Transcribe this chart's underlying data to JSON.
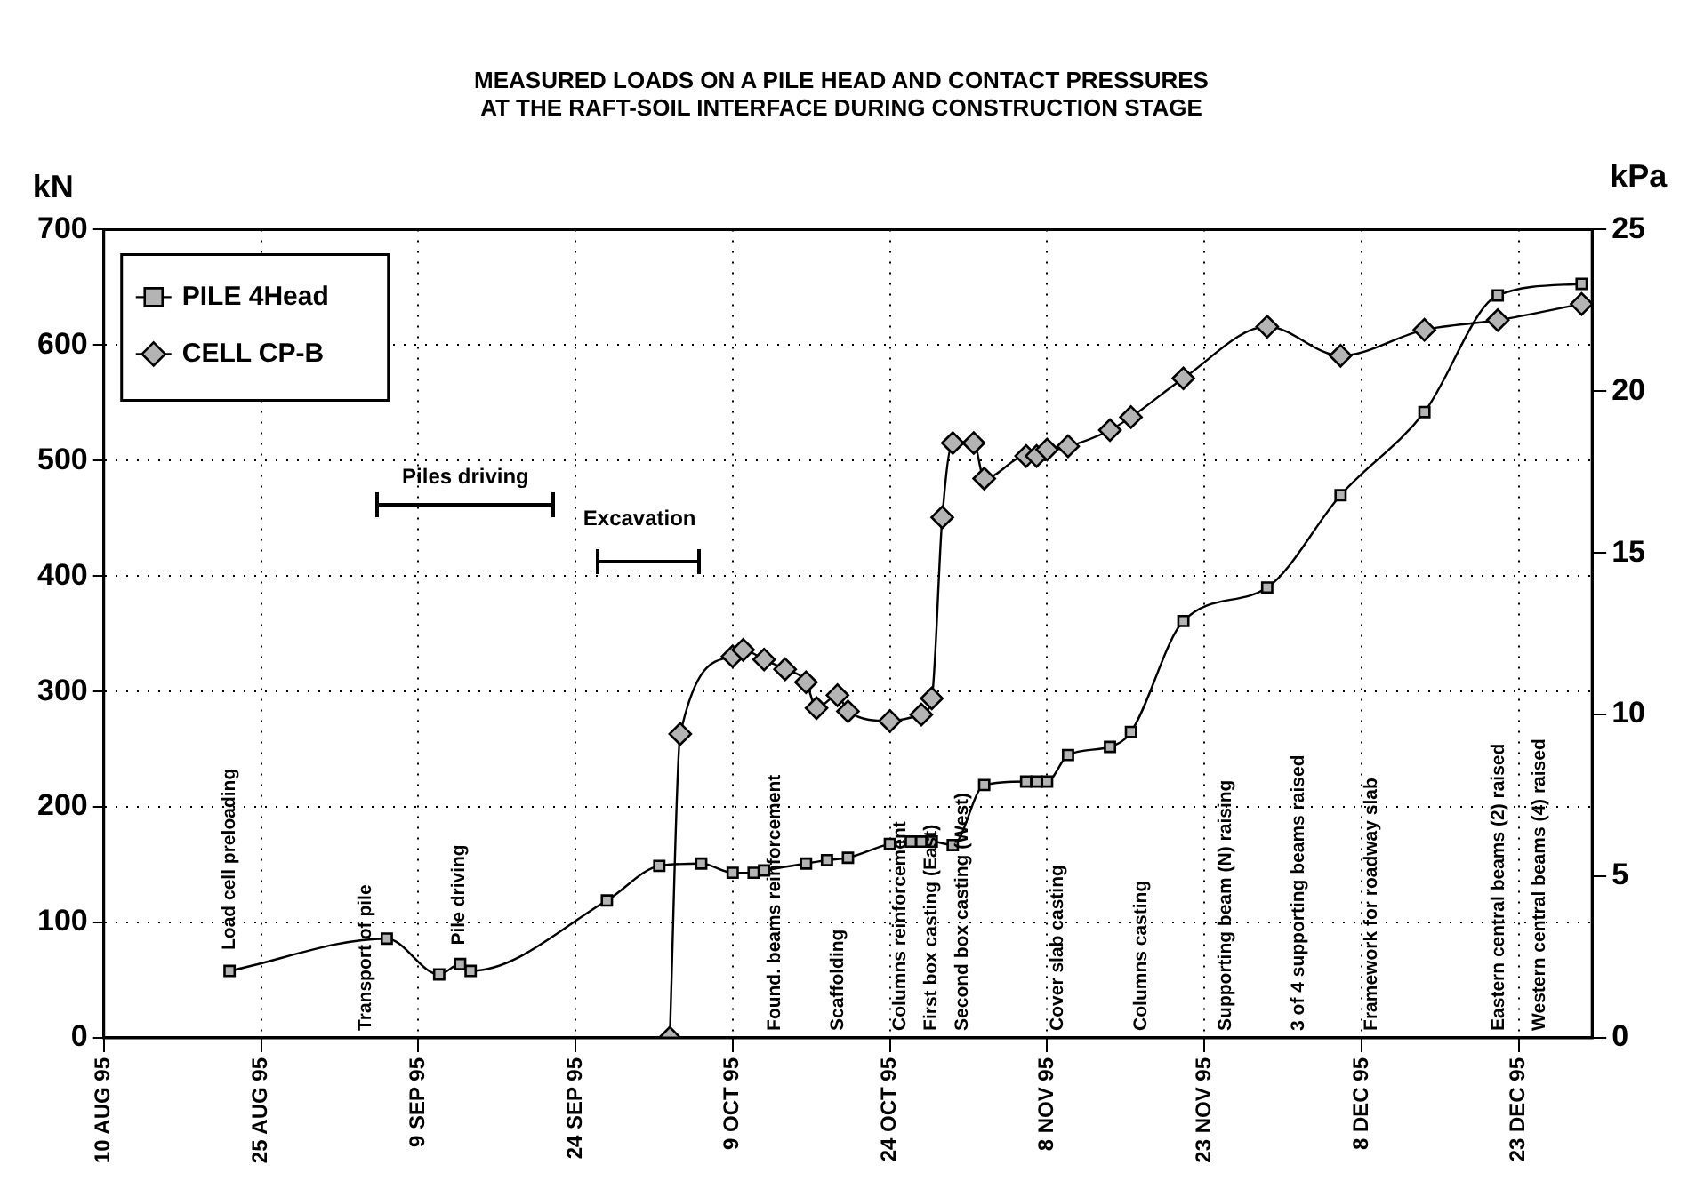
{
  "chart_data": {
    "type": "line",
    "title": "MEASURED LOADS ON A PILE HEAD AND CONTACT PRESSURES\nAT THE RAFT-SOIL INTERFACE DURING CONSTRUCTION STAGE",
    "ylabel": "kN",
    "y2label": "kPa",
    "series": [
      {
        "name": "PILE 4Head",
        "color": "#000000",
        "marker": "square",
        "x": [
          "1995-08-22",
          "1995-09-06",
          "1995-09-11",
          "1995-09-13",
          "1995-09-14",
          "1995-09-27",
          "1995-10-02",
          "1995-10-06",
          "1995-10-09",
          "1995-10-11",
          "1995-10-12",
          "1995-10-16",
          "1995-10-18",
          "1995-10-20",
          "1995-10-24",
          "1995-10-26",
          "1995-10-27",
          "1995-10-28",
          "1995-10-30",
          "1995-11-02",
          "1995-11-06",
          "1995-11-07",
          "1995-11-08",
          "1995-11-10",
          "1995-11-14",
          "1995-11-16",
          "1995-11-21",
          "1995-11-29",
          "1995-12-06",
          "1995-12-14",
          "1995-12-21",
          "1995-12-29"
        ],
        "values": [
          58,
          86,
          55,
          64,
          58,
          119,
          149,
          151,
          143,
          143,
          145,
          151,
          154,
          156,
          168,
          170,
          170,
          170,
          167,
          219,
          222,
          222,
          222,
          245,
          252,
          265,
          361,
          390,
          470,
          542,
          643,
          653
        ]
      },
      {
        "name": "CELL CP-B",
        "color": "#000000",
        "marker": "diamond",
        "axis": "y2",
        "x": [
          "1995-10-03",
          "1995-10-04",
          "1995-10-09",
          "1995-10-10",
          "1995-10-12",
          "1995-10-14",
          "1995-10-16",
          "1995-10-17",
          "1995-10-19",
          "1995-10-20",
          "1995-10-24",
          "1995-10-27",
          "1995-10-28",
          "1995-10-29",
          "1995-10-30",
          "1995-11-01",
          "1995-11-02",
          "1995-11-06",
          "1995-11-07",
          "1995-11-08",
          "1995-11-10",
          "1995-11-14",
          "1995-11-16",
          "1995-11-21",
          "1995-11-29",
          "1995-12-06",
          "1995-12-14",
          "1995-12-21",
          "1995-12-29"
        ],
        "values": [
          0,
          9.4,
          11.8,
          12.0,
          11.7,
          11.4,
          11.0,
          10.2,
          10.6,
          10.1,
          9.8,
          10.0,
          10.5,
          16.1,
          18.4,
          18.4,
          17.3,
          18.0,
          18.0,
          18.2,
          18.3,
          18.8,
          19.2,
          20.4,
          22.0,
          21.1,
          21.9,
          22.2,
          22.7
        ]
      }
    ],
    "xlim": [
      "1995-08-10",
      "1995-12-30"
    ],
    "xticks": [
      {
        "value": "1995-08-10",
        "label": "10 AUG 95"
      },
      {
        "value": "1995-08-25",
        "label": "25 AUG 95"
      },
      {
        "value": "1995-09-09",
        "label": "9 SEP 95"
      },
      {
        "value": "1995-09-24",
        "label": "24 SEP 95"
      },
      {
        "value": "1995-10-09",
        "label": "9 OCT 95"
      },
      {
        "value": "1995-10-24",
        "label": "24 OCT 95"
      },
      {
        "value": "1995-11-08",
        "label": "8 NOV 95"
      },
      {
        "value": "1995-11-23",
        "label": "23 NOV 95"
      },
      {
        "value": "1995-12-08",
        "label": "8 DEC 95"
      },
      {
        "value": "1995-12-23",
        "label": "23 DEC 95"
      }
    ],
    "ylim": [
      0,
      700
    ],
    "yticks": [
      0,
      100,
      200,
      300,
      400,
      500,
      600,
      700
    ],
    "y2lim": [
      0,
      25
    ],
    "y2ticks": [
      0,
      5,
      10,
      15,
      20,
      25
    ],
    "grid": true,
    "legend": "top left",
    "line_style": "solid",
    "annotations": [
      "Load cell preloading",
      "Transport of pile",
      "Pile driving",
      "Found. beams reinforcement",
      "Scaffolding",
      "Columns reinforcement",
      "First box casting (East)",
      "Second box casting (West)",
      "Cover slab casting",
      "Columns casting",
      "Supporting beam (N) raising",
      "3 of 4 supporting beams raised",
      "Framework for roadway slab",
      "Eastern central beams (2) raised",
      "Western central beams (4) raised",
      "Piles driving",
      "Excavation"
    ]
  }
}
